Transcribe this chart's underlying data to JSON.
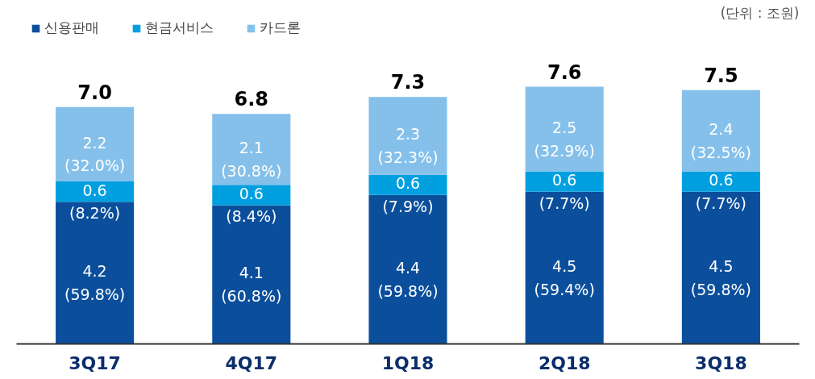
{
  "chart_data": {
    "type": "bar",
    "stacked": true,
    "categories": [
      "3Q17",
      "4Q17",
      "1Q18",
      "2Q18",
      "3Q18"
    ],
    "series": [
      {
        "name": "신용판매",
        "color": "#0b4f9c",
        "values": [
          4.2,
          4.1,
          4.4,
          4.5,
          4.5
        ],
        "value_labels": [
          "4.2\n(59.8%)",
          "4.1\n(60.8%)",
          "4.4\n(59.8%)",
          "4.5\n(59.4%)",
          "4.5\n(59.8%)"
        ]
      },
      {
        "name": "현금서비스",
        "color": "#00a0e0",
        "values": [
          0.6,
          0.6,
          0.6,
          0.6,
          0.6
        ],
        "value_labels": [
          "0.6\n(8.2%)",
          "0.6\n(8.4%)",
          "0.6\n(7.9%)",
          "0.6\n(7.7%)",
          "0.6\n(7.7%)"
        ]
      },
      {
        "name": "카드론",
        "color": "#85c0ea",
        "values": [
          2.2,
          2.1,
          2.3,
          2.5,
          2.4
        ],
        "value_labels": [
          "2.2\n(32.0%)",
          "2.1\n(30.8%)",
          "2.3\n(32.3%)",
          "2.5\n(32.9%)",
          "2.4\n(32.5%)"
        ]
      }
    ],
    "totals": [
      "7.0",
      "6.8",
      "7.3",
      "7.6",
      "7.5"
    ],
    "annotations": [
      "(단위 : 조원)"
    ],
    "legend": "top left",
    "grid": false
  }
}
